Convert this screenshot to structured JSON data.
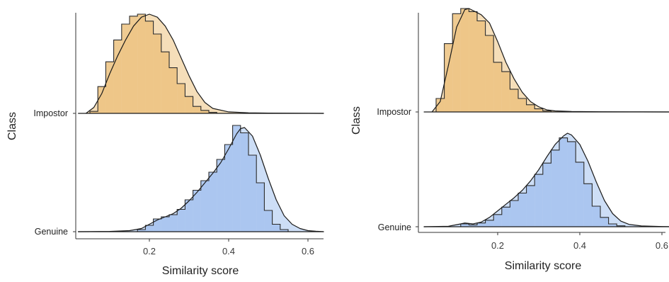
{
  "chart_data": [
    {
      "type": "ridgeline-histogram",
      "xlabel": "Similarity score",
      "ylabel": "Class",
      "xlim": [
        0.02,
        0.64
      ],
      "x_ticks": [
        0.2,
        0.4,
        0.6
      ],
      "x_tick_labels": [
        "0.2",
        "0.4",
        "0.6"
      ],
      "categories": [
        "Genuine",
        "Impostor"
      ],
      "grid": false,
      "series": [
        {
          "name": "Impostor",
          "color": "#ECC27F",
          "bin_width": 0.02,
          "bin_start": 0.05,
          "counts": [
            0.02,
            0.27,
            0.52,
            0.74,
            0.9,
            0.98,
            1.0,
            0.93,
            0.8,
            0.62,
            0.46,
            0.3,
            0.17,
            0.07,
            0.03,
            0.01
          ],
          "curve_x": [
            0.04,
            0.06,
            0.08,
            0.1,
            0.12,
            0.14,
            0.16,
            0.18,
            0.2,
            0.22,
            0.24,
            0.26,
            0.28,
            0.3,
            0.32,
            0.34,
            0.36,
            0.4,
            0.45,
            0.5,
            0.55,
            0.6,
            0.64
          ],
          "curve_y": [
            0.0,
            0.06,
            0.2,
            0.4,
            0.58,
            0.74,
            0.88,
            0.97,
            1.0,
            0.97,
            0.88,
            0.74,
            0.56,
            0.38,
            0.22,
            0.11,
            0.05,
            0.015,
            0.006,
            0.003,
            0.002,
            0.001,
            0.0
          ]
        },
        {
          "name": "Genuine",
          "color": "#A4C2EE",
          "bin_width": 0.02,
          "bin_start": 0.17,
          "counts": [
            0.02,
            0.06,
            0.12,
            0.14,
            0.16,
            0.21,
            0.3,
            0.39,
            0.48,
            0.56,
            0.68,
            0.82,
            1.0,
            0.93,
            0.72,
            0.46,
            0.2,
            0.07,
            0.02
          ],
          "curve_x": [
            0.02,
            0.1,
            0.15,
            0.18,
            0.2,
            0.22,
            0.24,
            0.26,
            0.28,
            0.3,
            0.32,
            0.34,
            0.36,
            0.38,
            0.4,
            0.42,
            0.43,
            0.44,
            0.46,
            0.48,
            0.5,
            0.52,
            0.54,
            0.56,
            0.58,
            0.6,
            0.62,
            0.64
          ],
          "curve_y": [
            0.0,
            0.003,
            0.01,
            0.03,
            0.07,
            0.11,
            0.14,
            0.17,
            0.22,
            0.29,
            0.37,
            0.46,
            0.55,
            0.65,
            0.78,
            0.92,
            0.97,
            0.98,
            0.9,
            0.72,
            0.5,
            0.3,
            0.15,
            0.07,
            0.03,
            0.01,
            0.004,
            0.0
          ]
        }
      ]
    },
    {
      "type": "ridgeline-histogram",
      "xlabel": "Similarity score",
      "ylabel": "Class",
      "xlim": [
        0.02,
        0.64
      ],
      "x_ticks": [
        0.2,
        0.4,
        0.6
      ],
      "x_tick_labels": [
        "0.2",
        "0.4",
        "0.6"
      ],
      "categories": [
        "Genuine",
        "Impostor"
      ],
      "grid": false,
      "series": [
        {
          "name": "Impostor",
          "color": "#ECC27F",
          "bin_width": 0.02,
          "bin_start": 0.05,
          "counts": [
            0.13,
            0.66,
            0.95,
            1.0,
            0.97,
            0.88,
            0.74,
            0.48,
            0.39,
            0.22,
            0.13,
            0.07,
            0.03,
            0.01
          ],
          "curve_x": [
            0.04,
            0.06,
            0.08,
            0.1,
            0.12,
            0.13,
            0.14,
            0.16,
            0.18,
            0.2,
            0.22,
            0.24,
            0.26,
            0.28,
            0.3,
            0.32,
            0.34,
            0.38,
            0.45,
            0.55,
            0.64
          ],
          "curve_y": [
            0.0,
            0.1,
            0.45,
            0.82,
            0.99,
            1.0,
            0.98,
            0.94,
            0.86,
            0.68,
            0.48,
            0.32,
            0.19,
            0.1,
            0.05,
            0.02,
            0.01,
            0.004,
            0.002,
            0.001,
            0.0
          ]
        },
        {
          "name": "Genuine",
          "color": "#A4C2EE",
          "bin_width": 0.02,
          "bin_start": 0.11,
          "counts": [
            0.03,
            0.02,
            0.04,
            0.07,
            0.13,
            0.21,
            0.28,
            0.36,
            0.44,
            0.56,
            0.68,
            0.82,
            0.95,
            0.91,
            0.69,
            0.46,
            0.22,
            0.1,
            0.03,
            0.01
          ],
          "curve_x": [
            0.02,
            0.08,
            0.11,
            0.12,
            0.14,
            0.16,
            0.18,
            0.2,
            0.22,
            0.24,
            0.26,
            0.28,
            0.3,
            0.32,
            0.34,
            0.36,
            0.37,
            0.38,
            0.4,
            0.42,
            0.44,
            0.46,
            0.48,
            0.5,
            0.52,
            0.55,
            0.6,
            0.64
          ],
          "curve_y": [
            0.0,
            0.005,
            0.03,
            0.04,
            0.03,
            0.05,
            0.1,
            0.17,
            0.24,
            0.31,
            0.39,
            0.49,
            0.61,
            0.75,
            0.88,
            0.97,
            1.0,
            0.98,
            0.88,
            0.7,
            0.48,
            0.28,
            0.14,
            0.06,
            0.025,
            0.008,
            0.002,
            0.0
          ]
        }
      ]
    }
  ]
}
